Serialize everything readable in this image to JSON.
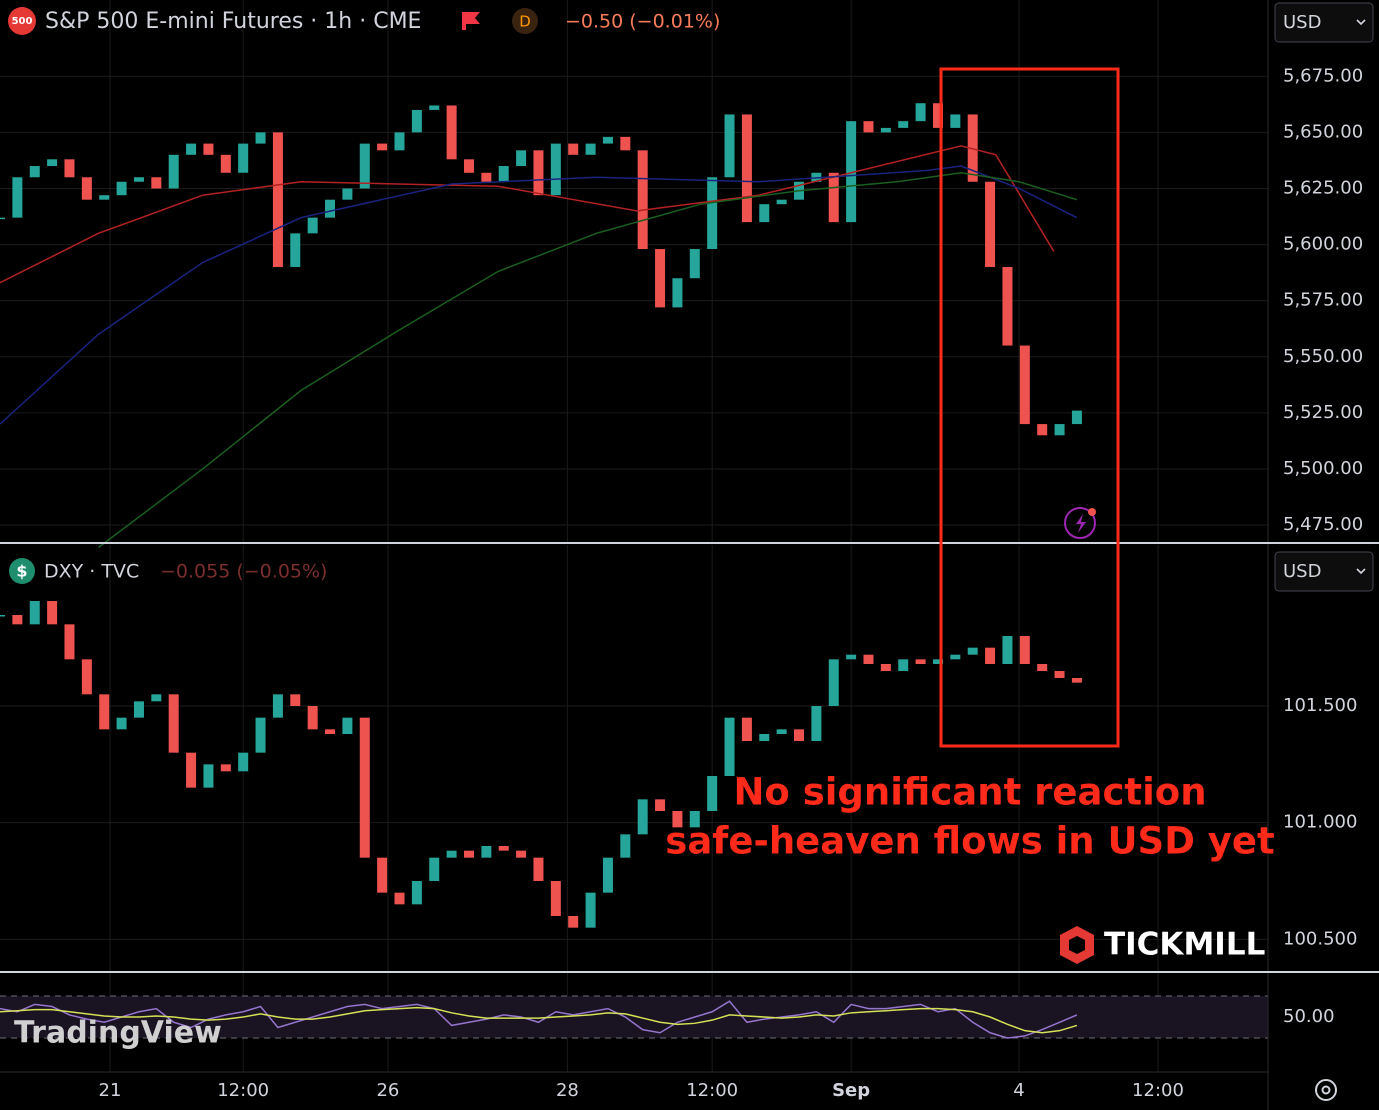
{
  "chart_data": [
    {
      "type": "candlestick",
      "badge": "500",
      "title": "S&P 500 E-mini Futures · 1h · CME",
      "session": "D",
      "change": "−0.50 (−0.01%)",
      "currency": "USD",
      "up_color": "#26a69a",
      "down_color": "#ef5350",
      "x": [
        0,
        3,
        6,
        9,
        12,
        15,
        18,
        21,
        24,
        27,
        30,
        33,
        36,
        39,
        42,
        45,
        48,
        51,
        54,
        57,
        60,
        63,
        66,
        69,
        72,
        75,
        78,
        81,
        84,
        87,
        90,
        93,
        96,
        99,
        102,
        105,
        108,
        111,
        114,
        117,
        120,
        123,
        126,
        129,
        132,
        135,
        138,
        141,
        144,
        147,
        150,
        153,
        156,
        159,
        162,
        165,
        168,
        171,
        174,
        177,
        180,
        183,
        186
      ],
      "values": [
        5612,
        5630,
        5635,
        5638,
        5630,
        5620,
        5622,
        5628,
        5630,
        5625,
        5640,
        5645,
        5640,
        5632,
        5645,
        5650,
        5590,
        5605,
        5612,
        5620,
        5625,
        5645,
        5642,
        5650,
        5660,
        5662,
        5638,
        5632,
        5628,
        5635,
        5642,
        5622,
        5645,
        5640,
        5645,
        5648,
        5642,
        5598,
        5572,
        5585,
        5598,
        5630,
        5658,
        5610,
        5618,
        5620,
        5628,
        5632,
        5610,
        5655,
        5650,
        5652,
        5655,
        5663,
        5652,
        5658,
        5628,
        5590,
        5555,
        5520,
        5515,
        5520,
        5526
      ],
      "lines": [
        {
          "color": "#b22222",
          "x": [
            0,
            17,
            35,
            52,
            86,
            110,
            131,
            147,
            166,
            172,
            182
          ],
          "values": [
            5583,
            5605,
            5622,
            5628,
            5626,
            5615,
            5622,
            5632,
            5644,
            5640,
            5597
          ]
        },
        {
          "color": "#1a237e",
          "x": [
            0,
            17,
            35,
            52,
            78,
            103,
            131,
            160,
            166,
            176,
            186
          ],
          "values": [
            5520,
            5560,
            5592,
            5612,
            5627,
            5630,
            5628,
            5633,
            5635,
            5625,
            5612
          ]
        },
        {
          "color": "#1b5e20",
          "x": [
            17,
            35,
            52,
            69,
            86,
            103,
            121,
            138,
            155,
            166,
            176,
            186
          ],
          "values": [
            5465,
            5500,
            5535,
            5562,
            5588,
            5605,
            5618,
            5624,
            5628,
            5632,
            5628,
            5620
          ]
        }
      ],
      "ylim": [
        5467,
        5709
      ],
      "yticks": [
        {
          "value": 5475,
          "label": "5,475.00"
        },
        {
          "value": 5500,
          "label": "5,500.00"
        },
        {
          "value": 5525,
          "label": "5,525.00"
        },
        {
          "value": 5550,
          "label": "5,550.00"
        },
        {
          "value": 5575,
          "label": "5,575.00"
        },
        {
          "value": 5600,
          "label": "5,600.00"
        },
        {
          "value": 5625,
          "label": "5,625.00"
        },
        {
          "value": 5650,
          "label": "5,650.00"
        },
        {
          "value": 5675,
          "label": "5,675.00"
        }
      ],
      "grid": true
    },
    {
      "type": "candlestick",
      "title": "DXY · TVC",
      "change": "−0.055 (−0.05%)",
      "currency": "USD",
      "up_color": "#26a69a",
      "down_color": "#ef5350",
      "x": [
        0,
        3,
        6,
        9,
        12,
        15,
        18,
        21,
        24,
        27,
        30,
        33,
        36,
        39,
        42,
        45,
        48,
        51,
        54,
        57,
        60,
        63,
        66,
        69,
        72,
        75,
        78,
        81,
        84,
        87,
        90,
        93,
        96,
        99,
        102,
        105,
        108,
        111,
        114,
        117,
        120,
        123,
        126,
        129,
        132,
        135,
        138,
        141,
        144,
        147,
        150,
        153,
        156,
        159,
        162,
        165,
        168,
        171,
        174,
        177,
        180,
        183,
        186
      ],
      "values": [
        101.89,
        101.85,
        101.95,
        101.85,
        101.7,
        101.55,
        101.4,
        101.45,
        101.52,
        101.55,
        101.3,
        101.15,
        101.25,
        101.22,
        101.3,
        101.45,
        101.55,
        101.5,
        101.4,
        101.38,
        101.45,
        100.85,
        100.7,
        100.65,
        100.75,
        100.85,
        100.88,
        100.85,
        100.9,
        100.88,
        100.85,
        100.75,
        100.6,
        100.55,
        100.7,
        100.85,
        100.95,
        101.1,
        101.05,
        100.98,
        101.05,
        101.2,
        101.45,
        101.35,
        101.38,
        101.4,
        101.35,
        101.5,
        101.7,
        101.72,
        101.68,
        101.65,
        101.7,
        101.68,
        101.7,
        101.72,
        101.75,
        101.68,
        101.8,
        101.68,
        101.65,
        101.62,
        101.6
      ],
      "ylim": [
        100.36,
        102.19
      ],
      "yticks": [
        {
          "value": 100.5,
          "label": "100.500"
        },
        {
          "value": 101,
          "label": "101.000"
        },
        {
          "value": 101.5,
          "label": "101.500"
        }
      ],
      "grid": true
    },
    {
      "type": "line",
      "x": [
        0,
        3,
        6,
        9,
        12,
        15,
        18,
        21,
        24,
        27,
        30,
        33,
        36,
        39,
        42,
        45,
        48,
        51,
        54,
        57,
        60,
        63,
        66,
        69,
        72,
        75,
        78,
        81,
        84,
        87,
        90,
        93,
        96,
        99,
        102,
        105,
        108,
        111,
        114,
        117,
        120,
        123,
        126,
        129,
        132,
        135,
        138,
        141,
        144,
        147,
        150,
        153,
        156,
        159,
        162,
        165,
        168,
        171,
        174,
        177,
        180,
        183,
        186
      ],
      "series": [
        {
          "color": "#9575cd",
          "values": [
            58,
            55,
            62,
            60,
            52,
            48,
            45,
            50,
            55,
            58,
            45,
            40,
            48,
            52,
            55,
            60,
            40,
            45,
            50,
            55,
            60,
            62,
            58,
            60,
            62,
            58,
            42,
            45,
            48,
            52,
            50,
            45,
            55,
            52,
            55,
            58,
            50,
            38,
            35,
            45,
            50,
            55,
            65,
            45,
            48,
            50,
            52,
            55,
            45,
            62,
            58,
            58,
            60,
            62,
            55,
            58,
            45,
            35,
            30,
            32,
            38,
            45,
            52
          ]
        },
        {
          "color": "#d4e157",
          "values": [
            55,
            56,
            57,
            57,
            55,
            53,
            51,
            50,
            50,
            51,
            50,
            48,
            47,
            48,
            50,
            53,
            50,
            48,
            48,
            50,
            53,
            56,
            57,
            58,
            59,
            58,
            54,
            51,
            49,
            49,
            49,
            49,
            50,
            51,
            52,
            54,
            53,
            49,
            45,
            43,
            44,
            47,
            52,
            51,
            50,
            49,
            50,
            52,
            51,
            54,
            55,
            56,
            57,
            58,
            58,
            57,
            55,
            50,
            43,
            37,
            35,
            37,
            42
          ]
        }
      ],
      "bands": [
        30,
        70
      ],
      "ylim": [
        -2.4,
        92.9
      ],
      "yticks": [
        {
          "value": 50,
          "label": "50.00"
        }
      ],
      "xlim": [
        0,
        219
      ],
      "xticks": [
        {
          "value": 19,
          "label": "21"
        },
        {
          "value": 42,
          "label": "12:00"
        },
        {
          "value": 67,
          "label": "26"
        },
        {
          "value": 98,
          "label": "28"
        },
        {
          "value": 123,
          "label": "12:00"
        },
        {
          "value": 147,
          "label": "Sep"
        },
        {
          "value": 176,
          "label": "4"
        },
        {
          "value": 200,
          "label": "12:00"
        }
      ],
      "grid": true
    }
  ],
  "annotation": [
    "No significant reaction",
    "safe-heaven flows in USD yet"
  ],
  "brand": "TICKMILL",
  "watermark": "TradingView"
}
